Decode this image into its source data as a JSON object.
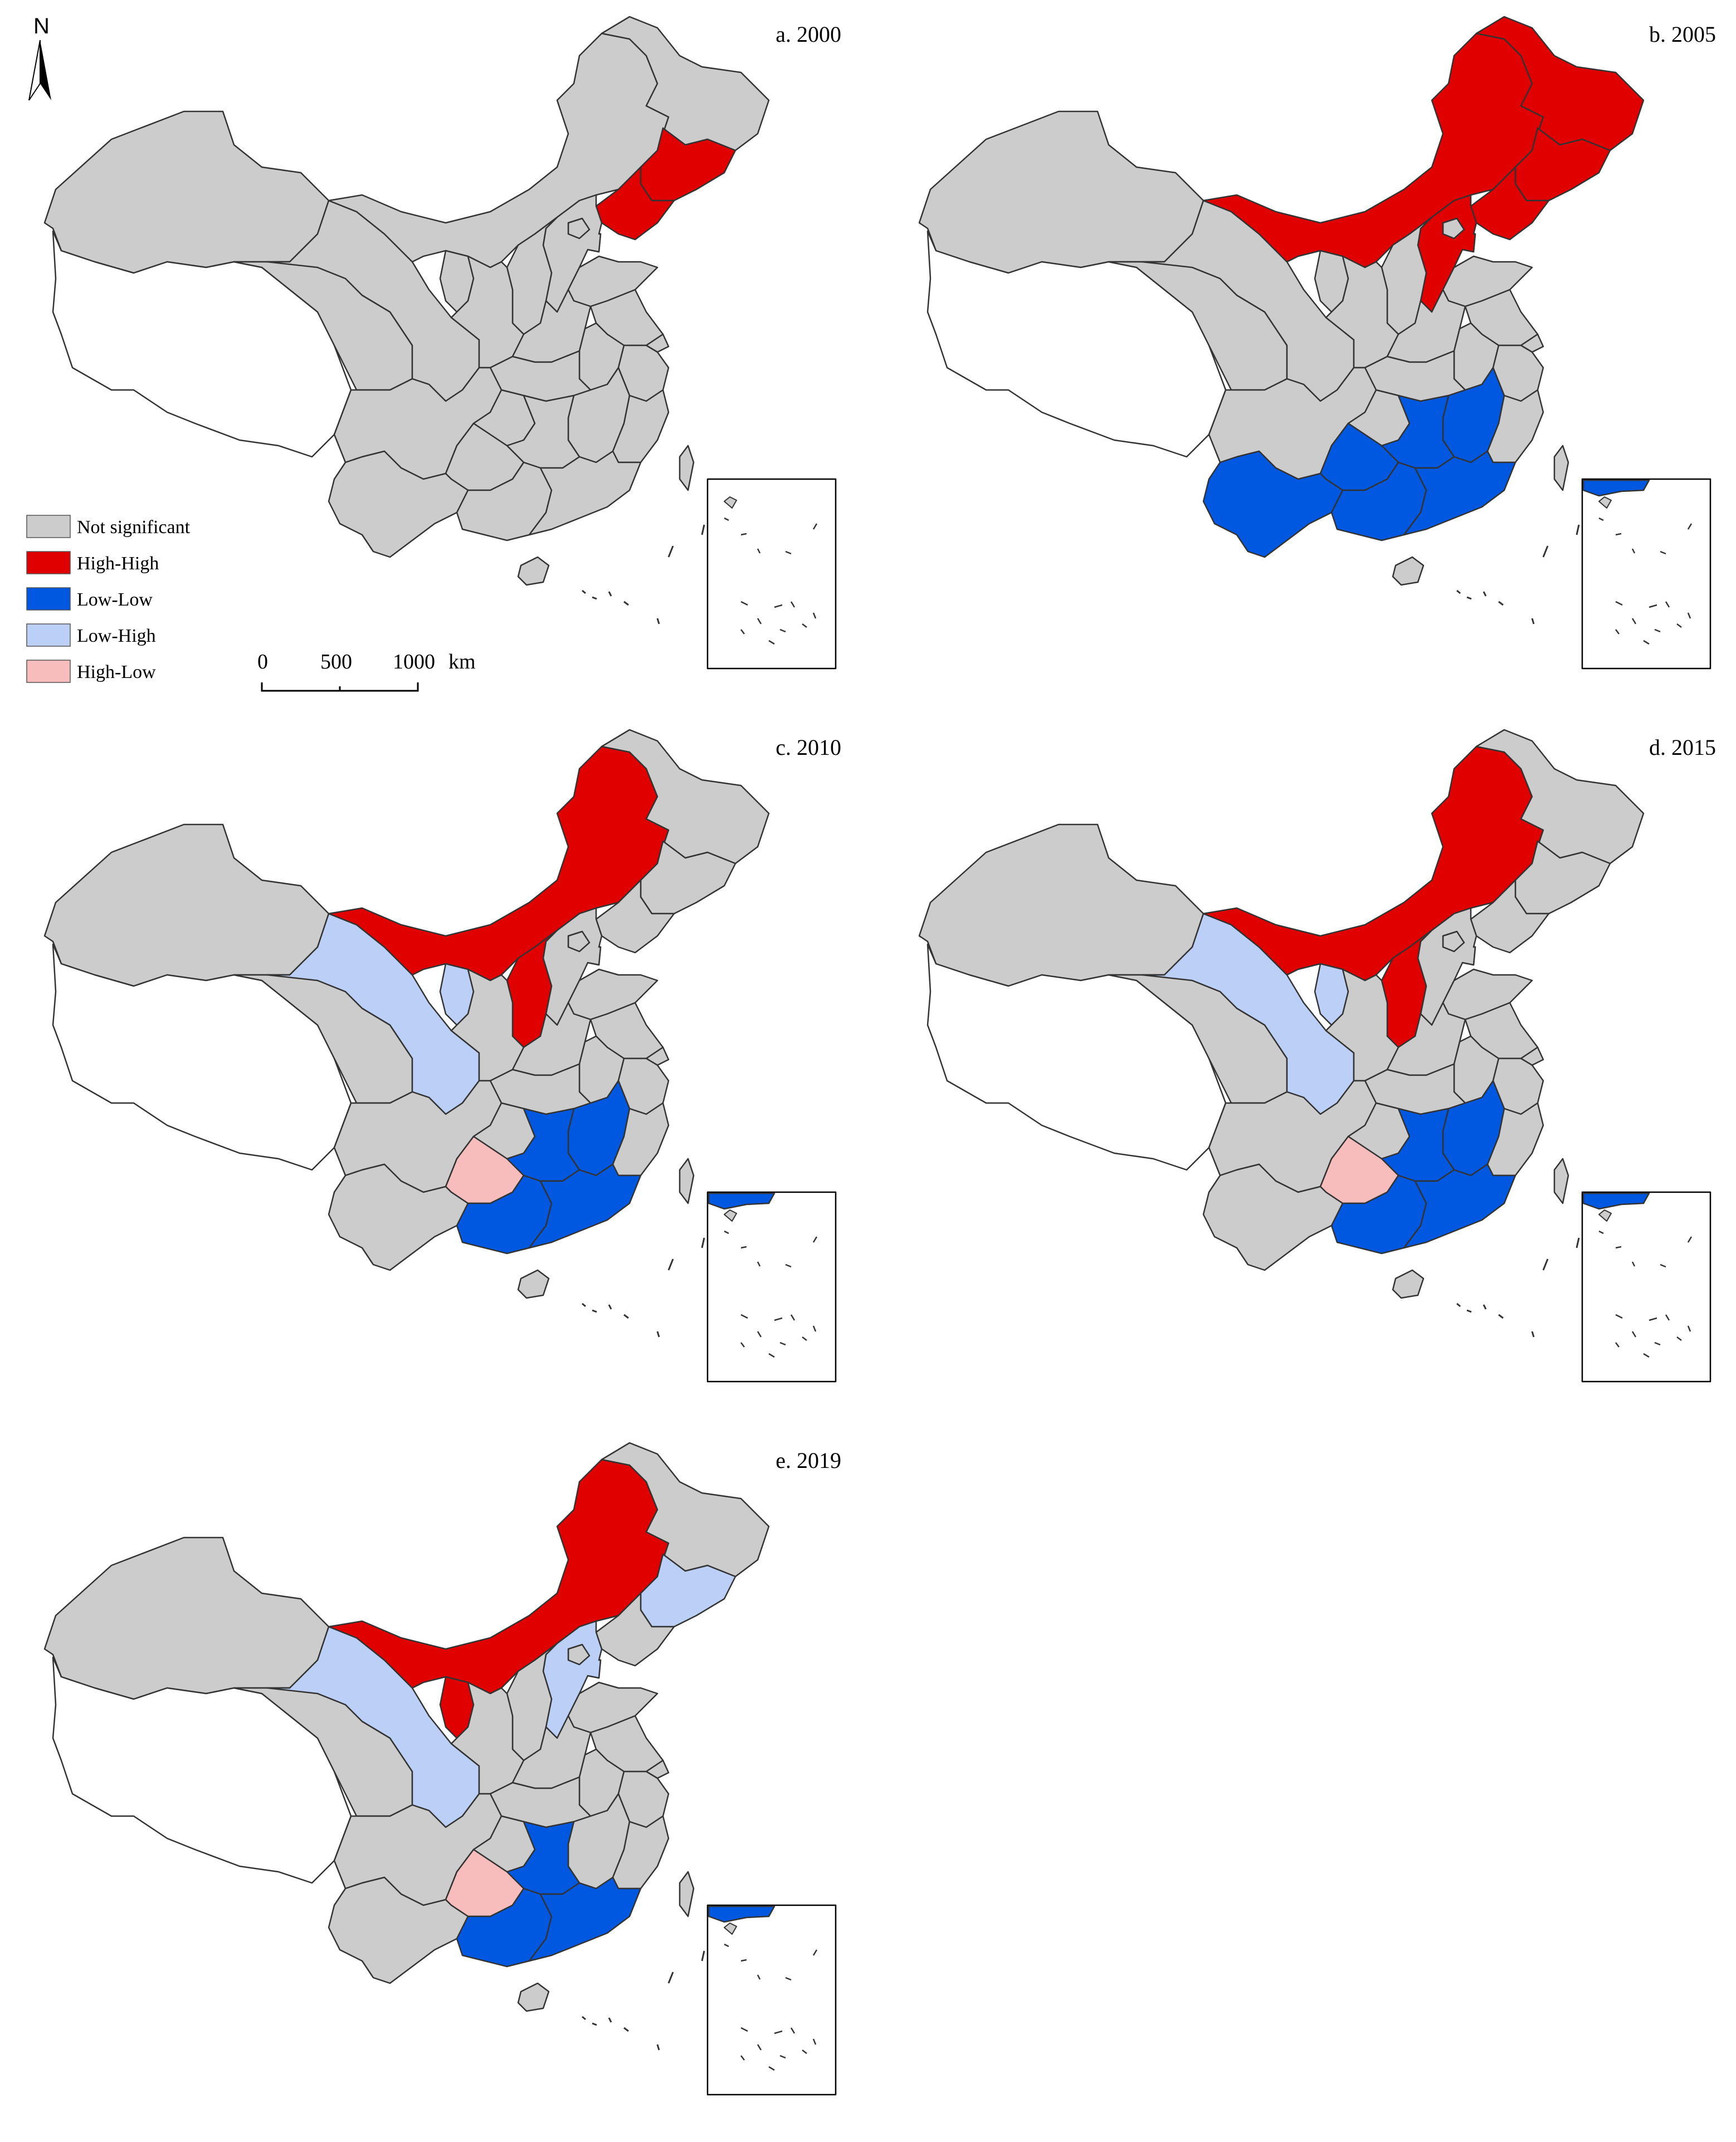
{
  "figure": {
    "north_label": "N",
    "scale_bar": {
      "labels": [
        "0",
        "500",
        "1000"
      ],
      "unit": "km"
    }
  },
  "legend": [
    {
      "key": "ns",
      "label": "Not significant",
      "color": "#cccccc"
    },
    {
      "key": "hh",
      "label": "High-High",
      "color": "#e00000"
    },
    {
      "key": "ll",
      "label": "Low-Low",
      "color": "#0057e0"
    },
    {
      "key": "lh",
      "label": "Low-High",
      "color": "#bcd0f7"
    },
    {
      "key": "hl",
      "label": "High-Low",
      "color": "#f7bcbc"
    }
  ],
  "colors": {
    "no_data": "#ffffff",
    "border": "#333333",
    "sea_islands": "#cccccc"
  },
  "panels": [
    {
      "id": "a",
      "title": "a. 2000",
      "classes": {
        "hh": [
          "Liaoning",
          "Jilin"
        ]
      }
    },
    {
      "id": "b",
      "title": "b. 2005",
      "classes": {
        "hh": [
          "Inner Mongolia",
          "Heilongjiang",
          "Jilin",
          "Liaoning",
          "Hebei"
        ],
        "ll": [
          "Yunnan",
          "Guizhou",
          "Guangxi",
          "Hunan",
          "Jiangxi",
          "Guangdong"
        ]
      }
    },
    {
      "id": "c",
      "title": "c. 2010",
      "classes": {
        "hh": [
          "Inner Mongolia",
          "Shanxi"
        ],
        "lh": [
          "Gansu",
          "Ningxia"
        ],
        "hl": [
          "Guizhou"
        ],
        "ll": [
          "Hunan",
          "Jiangxi",
          "Guangxi",
          "Guangdong"
        ]
      }
    },
    {
      "id": "d",
      "title": "d. 2015",
      "classes": {
        "hh": [
          "Inner Mongolia",
          "Shanxi"
        ],
        "lh": [
          "Gansu",
          "Ningxia"
        ],
        "hl": [
          "Guizhou"
        ],
        "ll": [
          "Hunan",
          "Jiangxi",
          "Guangxi",
          "Guangdong"
        ]
      }
    },
    {
      "id": "e",
      "title": "e. 2019",
      "classes": {
        "hh": [
          "Inner Mongolia",
          "Ningxia"
        ],
        "lh": [
          "Gansu",
          "Hebei",
          "Jilin"
        ],
        "hl": [
          "Guizhou"
        ],
        "ll": [
          "Hunan",
          "Guangxi",
          "Guangdong"
        ]
      }
    }
  ]
}
